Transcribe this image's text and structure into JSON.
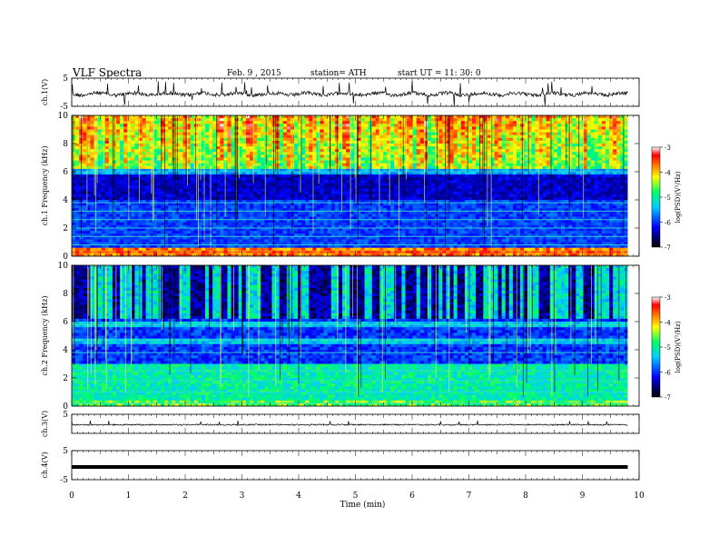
{
  "header": {
    "title": "VLF  Spectra",
    "date": "Feb. 9  , 2015",
    "station": "station= ATH",
    "start": "start  UT  =    11: 30: 0"
  },
  "chart_data": [
    {
      "type": "line",
      "panel": "ch1-waveform",
      "ylabel": "ch.1(V)",
      "yticks": [
        "5",
        "-5"
      ],
      "ylim": [
        -5,
        5
      ],
      "xlim": [
        0,
        10
      ],
      "x_extent": [
        0,
        9.8
      ],
      "description_values": {
        "baseline": 0,
        "spike_amplitude_max": 2.5
      }
    },
    {
      "type": "heatmap",
      "panel": "ch1-spectrogram",
      "ylabel": "ch.1 Frequency  (kHz)",
      "yticks": [
        "0",
        "2",
        "4",
        "6",
        "8",
        "10"
      ],
      "ylim": [
        0,
        10
      ],
      "xlim": [
        0,
        10
      ],
      "x_extent": [
        0,
        9.8
      ],
      "colorbar": {
        "label": "log(PSD)(V²/Hz)",
        "ticks": [
          "-3",
          "-4",
          "-5",
          "-6",
          "-7"
        ],
        "range": [
          -7,
          -3
        ]
      }
    },
    {
      "type": "heatmap",
      "panel": "ch2-spectrogram",
      "ylabel": "ch.2 Frequency  (kHz)",
      "yticks": [
        "0",
        "2",
        "4",
        "6",
        "8",
        "10"
      ],
      "ylim": [
        0,
        10
      ],
      "xlim": [
        0,
        10
      ],
      "x_extent": [
        0,
        9.8
      ],
      "colorbar": {
        "label": "log(PSD)(V²/Hz)",
        "ticks": [
          "-3",
          "-4",
          "-5",
          "-6",
          "-7"
        ],
        "range": [
          -7,
          -3
        ]
      }
    },
    {
      "type": "line",
      "panel": "ch3-waveform",
      "ylabel": "ch.3(V)",
      "yticks": [
        "5"
      ],
      "ylim": [
        -5,
        5
      ],
      "xlim": [
        0,
        10
      ],
      "x_extent": [
        0,
        9.8
      ]
    },
    {
      "type": "line",
      "panel": "ch4-waveform",
      "ylabel": "ch.4(V)",
      "yticks": [
        "5",
        "-5"
      ],
      "ylim": [
        -5,
        5
      ],
      "xlim": [
        0,
        10
      ],
      "x_extent": [
        0,
        9.8
      ]
    }
  ],
  "xaxis": {
    "label": "Time  (min)",
    "ticks": [
      "0",
      "1",
      "2",
      "3",
      "4",
      "5",
      "6",
      "7",
      "8",
      "9",
      "10"
    ]
  },
  "colors": {
    "background": "#ffffff",
    "trace": "#000000",
    "colormap": [
      "#000000",
      "#0000ff",
      "#00ccff",
      "#00ff66",
      "#ffff00",
      "#ff6600",
      "#ff0000",
      "#ffffff"
    ]
  }
}
